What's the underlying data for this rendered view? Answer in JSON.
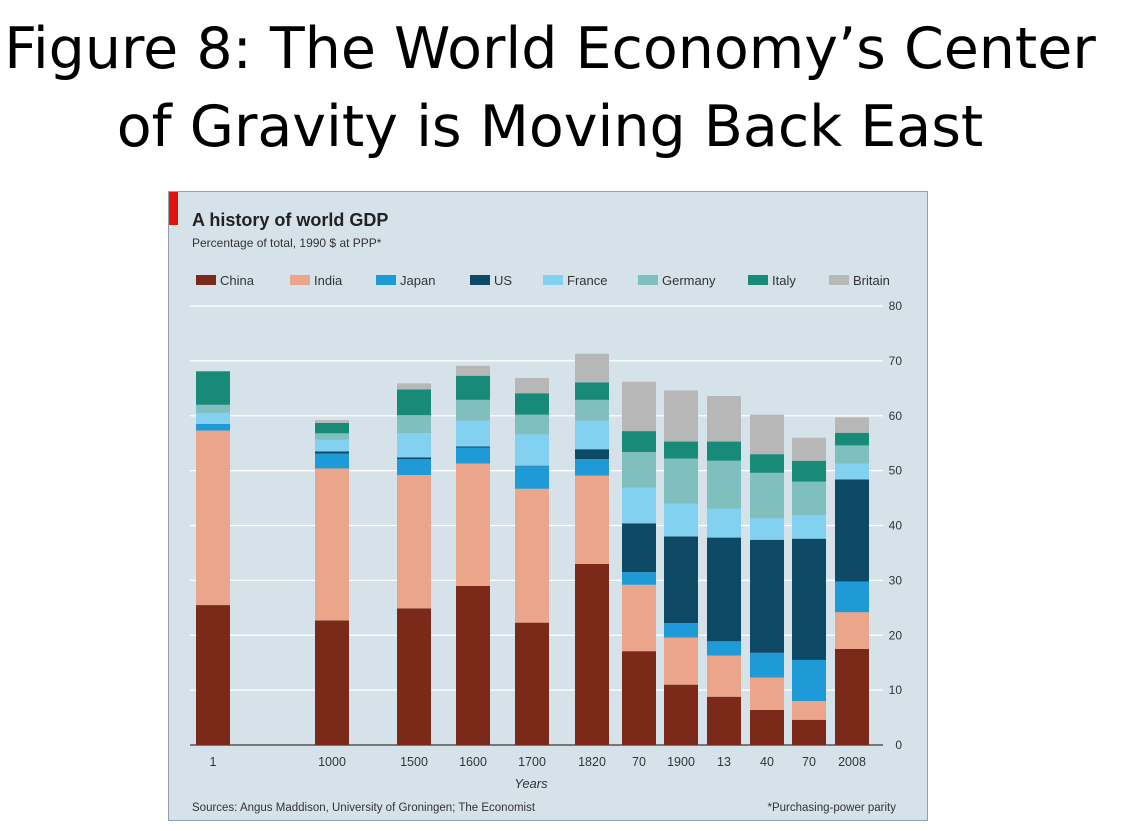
{
  "slide": {
    "title_line1": "Figure 8: The World Economy’s Center",
    "title_line2": "of Gravity is Moving Back East"
  },
  "chart_data": {
    "type": "bar",
    "stacked": true,
    "title": "A history of world GDP",
    "subtitle": "Percentage of total, 1990 $ at PPP*",
    "xlabel": "Years",
    "ylabel": "",
    "ylim": [
      0,
      80
    ],
    "yticks": [
      0,
      10,
      20,
      30,
      40,
      50,
      60,
      70,
      80
    ],
    "y_axis_side": "right",
    "grid": true,
    "legend_position": "top",
    "categories": [
      "1",
      "1000",
      "1500",
      "1600",
      "1700",
      "1820",
      "70",
      "1900",
      "13",
      "40",
      "70",
      "2008"
    ],
    "series": [
      {
        "name": "China",
        "color": "#7b2a1a",
        "values": [
          25.5,
          22.7,
          24.9,
          29.0,
          22.3,
          33.0,
          17.1,
          11.0,
          8.8,
          6.4,
          4.6,
          17.5
        ]
      },
      {
        "name": "India",
        "color": "#eba58a",
        "values": [
          31.8,
          27.7,
          24.3,
          22.3,
          24.4,
          16.1,
          12.1,
          8.6,
          7.5,
          5.9,
          3.4,
          6.7
        ]
      },
      {
        "name": "Japan",
        "color": "#1e9ad6",
        "values": [
          1.2,
          2.7,
          2.9,
          2.9,
          4.1,
          3.0,
          2.3,
          2.6,
          2.6,
          4.5,
          7.5,
          5.6
        ]
      },
      {
        "name": "US",
        "color": "#0e4a66",
        "values": [
          0.0,
          0.4,
          0.3,
          0.2,
          0.1,
          1.8,
          8.9,
          15.8,
          18.9,
          20.6,
          22.1,
          18.6
        ]
      },
      {
        "name": "France",
        "color": "#82d1f0",
        "values": [
          2.0,
          2.1,
          4.4,
          4.7,
          5.7,
          5.2,
          6.5,
          6.0,
          5.3,
          3.9,
          4.3,
          2.9
        ]
      },
      {
        "name": "Germany",
        "color": "#7fbfbd",
        "values": [
          1.5,
          1.2,
          3.3,
          3.8,
          3.6,
          3.8,
          6.5,
          8.2,
          8.7,
          8.3,
          6.1,
          3.3
        ]
      },
      {
        "name": "Italy",
        "color": "#178a78",
        "values": [
          6.1,
          1.9,
          4.7,
          4.4,
          3.9,
          3.2,
          3.8,
          3.1,
          3.5,
          3.4,
          3.8,
          2.3
        ]
      },
      {
        "name": "Britain",
        "color": "#b7b7b7",
        "values": [
          0.0,
          0.5,
          1.1,
          1.8,
          2.8,
          5.2,
          9.0,
          9.3,
          8.3,
          7.2,
          4.2,
          2.8
        ]
      }
    ],
    "source_note": "Sources: Angus Maddison, University of Groningen; The Economist",
    "footnote": "*Purchasing-power parity",
    "colors": {
      "panel_background": "#d6e2ea",
      "gridline": "#ffffff",
      "accent_tab": "#e3120b"
    }
  }
}
